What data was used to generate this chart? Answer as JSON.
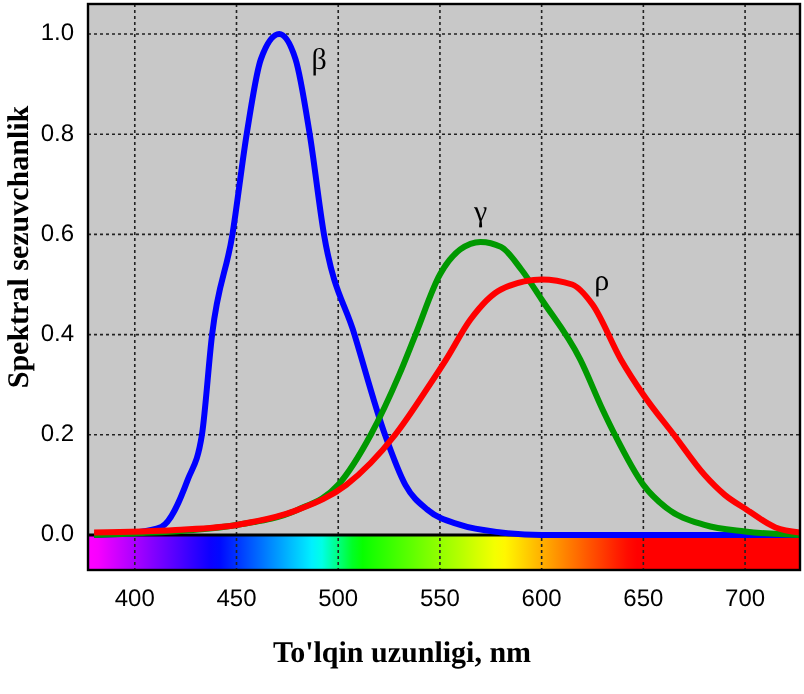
{
  "chart_data": {
    "type": "line",
    "xlabel": "To'lqin uzunligi, nm",
    "ylabel": "Spektral sezuvchanlik",
    "xlim": [
      377,
      727
    ],
    "xticks": [
      400,
      450,
      500,
      550,
      600,
      650,
      700
    ],
    "ylim": [
      -0.07,
      1.06
    ],
    "yticks": [
      {
        "value": 0,
        "label": "0.0"
      },
      {
        "value": 0.2,
        "label": "0.2"
      },
      {
        "value": 0.4,
        "label": "0.4"
      },
      {
        "value": 0.6,
        "label": "0.6"
      },
      {
        "value": 0.8,
        "label": "0.8"
      },
      {
        "value": 1,
        "label": "1.0"
      }
    ],
    "grid": true,
    "marker": "none",
    "line_style": "solid",
    "series": [
      {
        "name": "β",
        "color": "#0000ff",
        "x": [
          380,
          400,
          413,
          426,
          433,
          438,
          448,
          455,
          462,
          471,
          479,
          486,
          493,
          508,
          523,
          533,
          544,
          560,
          580,
          600,
          650,
          700,
          727
        ],
        "values": [
          0,
          0.005,
          0.016,
          0.11,
          0.2,
          0.4,
          0.6,
          0.8,
          0.95,
          1.0,
          0.95,
          0.8,
          0.6,
          0.4,
          0.2,
          0.1,
          0.05,
          0.02,
          0.005,
          0,
          0,
          0,
          0
        ]
      },
      {
        "name": "γ",
        "color": "#009900",
        "x": [
          380,
          400,
          450,
          480,
          500,
          516,
          530,
          538,
          550,
          560,
          570,
          580,
          590,
          600,
          619,
          630,
          636,
          650,
          661,
          680,
          700,
          727
        ],
        "values": [
          0,
          0.003,
          0.02,
          0.05,
          0.1,
          0.2,
          0.32,
          0.4,
          0.52,
          0.57,
          0.585,
          0.575,
          0.53,
          0.47,
          0.35,
          0.25,
          0.2,
          0.1,
          0.055,
          0.02,
          0.007,
          0
        ]
      },
      {
        "name": "ρ",
        "color": "#ff0000",
        "x": [
          380,
          420,
          450,
          480,
          504,
          528,
          545,
          553,
          565,
          580,
          600,
          615,
          625,
          639,
          650,
          665,
          680,
          690,
          701,
          715,
          727
        ],
        "values": [
          0.005,
          0.01,
          0.02,
          0.05,
          0.1,
          0.2,
          0.3,
          0.35,
          0.43,
          0.49,
          0.51,
          0.5,
          0.46,
          0.35,
          0.28,
          0.2,
          0.12,
          0.08,
          0.05,
          0.015,
          0.005
        ]
      }
    ]
  }
}
